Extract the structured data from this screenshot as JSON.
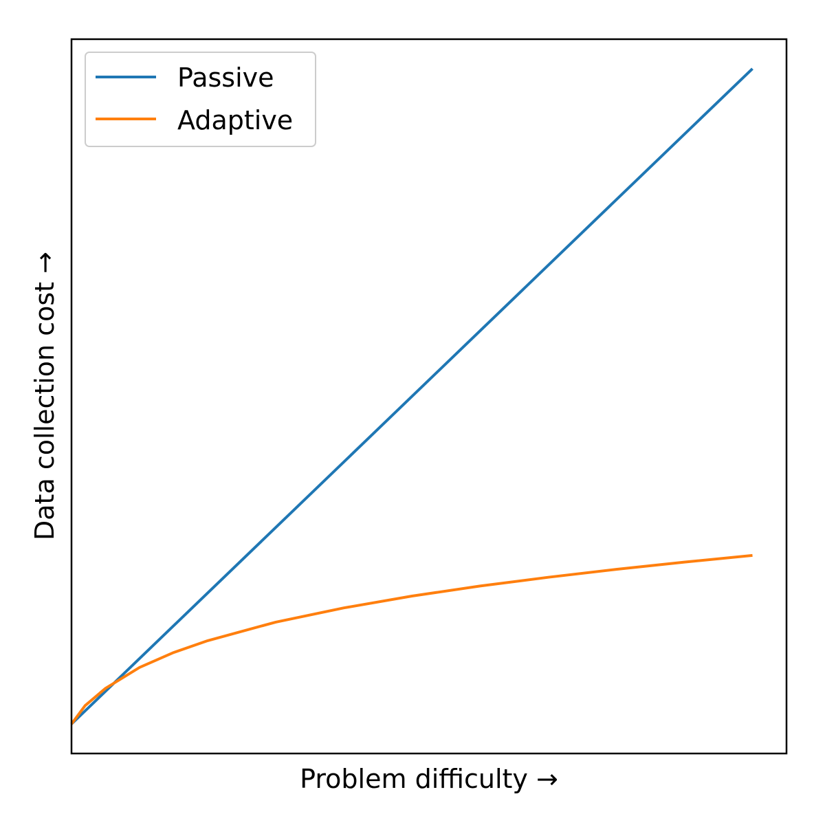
{
  "chart_data": {
    "type": "line",
    "title": "",
    "xlabel": "Problem difficulty →",
    "ylabel": "Data collection cost →",
    "x_ticks": false,
    "y_ticks": false,
    "grid": false,
    "legend": "top-left",
    "xlim": [
      0,
      1.05
    ],
    "ylim": [
      -0.045,
      1.045
    ],
    "series": [
      {
        "name": "Passive",
        "color": "#1f77b4",
        "x": [
          0.0,
          1.0
        ],
        "y": [
          0.0,
          1.0
        ]
      },
      {
        "name": "Adaptive",
        "color": "#ff7f0e",
        "x": [
          0.0,
          0.02,
          0.05,
          0.1,
          0.15,
          0.2,
          0.3,
          0.4,
          0.5,
          0.6,
          0.7,
          0.8,
          0.9,
          1.0
        ],
        "y": [
          0.0,
          0.0281,
          0.0545,
          0.0863,
          0.1091,
          0.1272,
          0.1555,
          0.1772,
          0.1952,
          0.2106,
          0.2239,
          0.2361,
          0.2471,
          0.2572
        ]
      }
    ]
  }
}
